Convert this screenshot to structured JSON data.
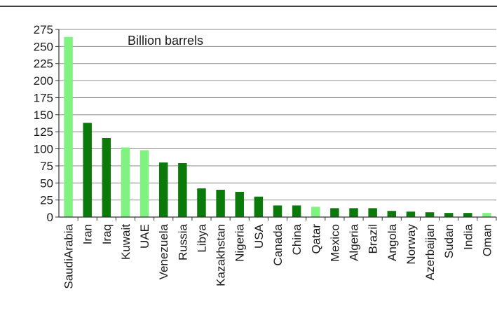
{
  "chart_data": {
    "type": "bar",
    "title": "",
    "unit_label": "Billion barrels",
    "xlabel": "",
    "ylabel": "",
    "ylim": [
      0,
      275
    ],
    "yticks": [
      0,
      25,
      50,
      75,
      100,
      125,
      150,
      175,
      200,
      225,
      250,
      275
    ],
    "grid": true,
    "categories": [
      "SaudiArabia",
      "Iran",
      "Iraq",
      "Kuwait",
      "UAE",
      "Venezuela",
      "Russia",
      "Libya",
      "Kazakhstan",
      "Nigeria",
      "USA",
      "Canada",
      "China",
      "Qatar",
      "Mexico",
      "Algeria",
      "Brazil",
      "Angola",
      "Norway",
      "Azerbaijan",
      "Sudan",
      "India",
      "Oman"
    ],
    "values": [
      264,
      138,
      116,
      102,
      98,
      80,
      79,
      42,
      40,
      37,
      30,
      17,
      17,
      15,
      13,
      13,
      13,
      9,
      8,
      7,
      6,
      6,
      6
    ],
    "bar_colors": [
      "#7FF27F",
      "#0B7A0B",
      "#0B7A0B",
      "#7FF27F",
      "#7FF27F",
      "#0B7A0B",
      "#0B7A0B",
      "#0B7A0B",
      "#0B7A0B",
      "#0B7A0B",
      "#0B7A0B",
      "#0B7A0B",
      "#0B7A0B",
      "#7FF27F",
      "#0B7A0B",
      "#0B7A0B",
      "#0B7A0B",
      "#0B7A0B",
      "#0B7A0B",
      "#0B7A0B",
      "#0B7A0B",
      "#0B7A0B",
      "#7FF27F"
    ]
  }
}
